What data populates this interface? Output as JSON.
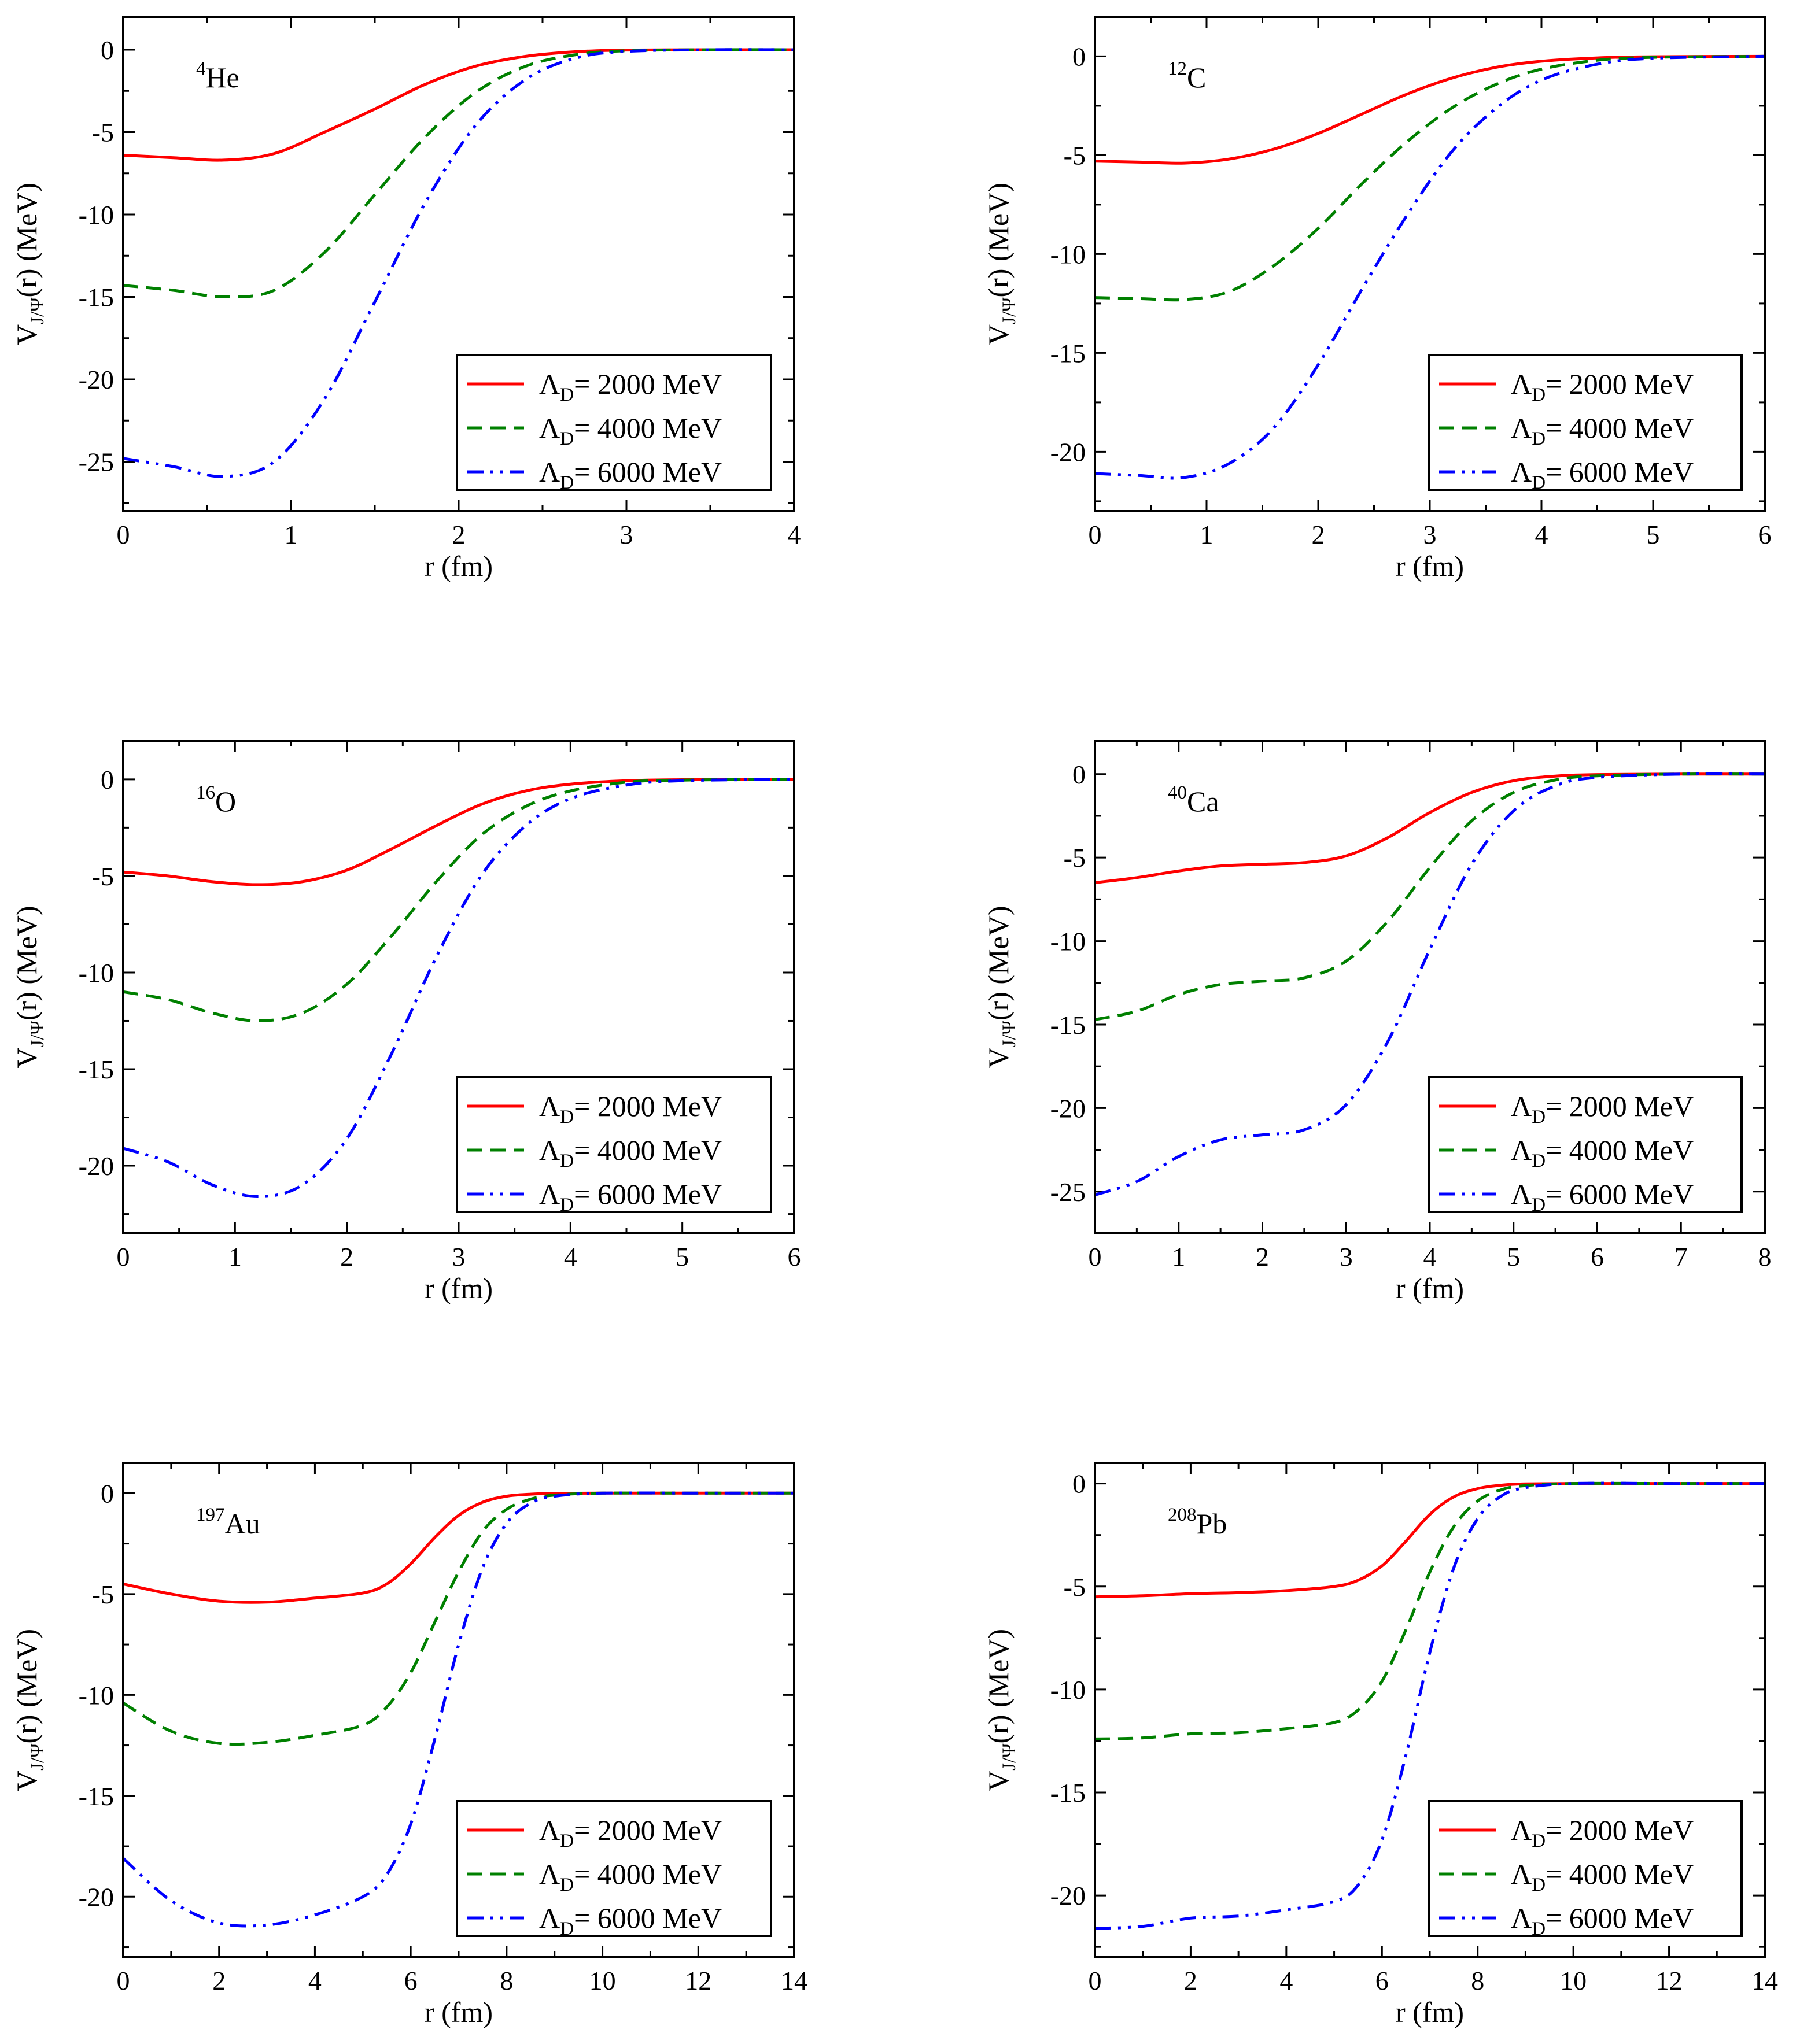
{
  "figure": {
    "x_label": "r  (fm)",
    "y_label": {
      "main": "V",
      "sub": "J/Ψ",
      "rest": "(r)  (MeV)"
    },
    "legend": [
      {
        "prefix": "Λ",
        "sub": "D",
        "text": "= 2000 MeV",
        "color": "#ff0000",
        "dash": ""
      },
      {
        "prefix": "Λ",
        "sub": "D",
        "text": "= 4000 MeV",
        "color": "#008000",
        "dash": "26,14"
      },
      {
        "prefix": "Λ",
        "sub": "D",
        "text": "= 6000 MeV",
        "color": "#0000ff",
        "dash": "28,12,5,12,5,12"
      }
    ]
  },
  "chart_data": [
    {
      "type": "line",
      "nucleus": {
        "mass": "4",
        "symbol": "He"
      },
      "xlabel": "r  (fm)",
      "ylabel": "V_J/Ψ(r)  (MeV)",
      "xlim": [
        0,
        4
      ],
      "ylim": [
        -28,
        2
      ],
      "xticks": [
        0,
        1,
        2,
        3,
        4
      ],
      "yticks": [
        -25,
        -20,
        -15,
        -10,
        -5,
        0
      ],
      "x": [
        0,
        0.3,
        0.6,
        0.9,
        1.2,
        1.5,
        1.8,
        2.1,
        2.4,
        2.7,
        3.0,
        3.5,
        4.0
      ],
      "series": [
        {
          "name": "ΛD = 2000 MeV",
          "values": [
            -6.4,
            -6.55,
            -6.7,
            -6.3,
            -5.0,
            -3.6,
            -2.1,
            -1.0,
            -0.4,
            -0.12,
            -0.02,
            0,
            0
          ]
        },
        {
          "name": "ΛD = 4000 MeV",
          "values": [
            -14.3,
            -14.6,
            -15.0,
            -14.6,
            -12.3,
            -8.8,
            -5.3,
            -2.6,
            -1.0,
            -0.3,
            -0.06,
            0,
            0
          ]
        },
        {
          "name": "ΛD = 6000 MeV",
          "values": [
            -24.8,
            -25.3,
            -25.9,
            -25.0,
            -21.2,
            -15.3,
            -9.3,
            -4.6,
            -1.8,
            -0.5,
            -0.1,
            0,
            0
          ]
        }
      ]
    },
    {
      "type": "line",
      "nucleus": {
        "mass": "12",
        "symbol": "C"
      },
      "xlabel": "r  (fm)",
      "ylabel": "V_J/Ψ(r)  (MeV)",
      "xlim": [
        0,
        6
      ],
      "ylim": [
        -23,
        2
      ],
      "xticks": [
        0,
        1,
        2,
        3,
        4,
        5,
        6
      ],
      "yticks": [
        -20,
        -15,
        -10,
        -5,
        0
      ],
      "x": [
        0,
        0.4,
        0.8,
        1.2,
        1.6,
        2.0,
        2.4,
        2.8,
        3.2,
        3.6,
        4.0,
        4.5,
        5.0,
        6.0
      ],
      "series": [
        {
          "name": "ΛD = 2000 MeV",
          "values": [
            -5.3,
            -5.35,
            -5.4,
            -5.2,
            -4.7,
            -3.9,
            -2.9,
            -1.9,
            -1.1,
            -0.55,
            -0.25,
            -0.08,
            -0.02,
            0
          ]
        },
        {
          "name": "ΛD = 4000 MeV",
          "values": [
            -12.2,
            -12.25,
            -12.3,
            -11.9,
            -10.6,
            -8.7,
            -6.4,
            -4.3,
            -2.6,
            -1.4,
            -0.65,
            -0.2,
            -0.05,
            0
          ]
        },
        {
          "name": "ΛD = 6000 MeV",
          "values": [
            -21.1,
            -21.2,
            -21.3,
            -20.6,
            -18.8,
            -15.6,
            -11.7,
            -8.0,
            -4.8,
            -2.6,
            -1.2,
            -0.4,
            -0.1,
            0
          ]
        }
      ]
    },
    {
      "type": "line",
      "nucleus": {
        "mass": "16",
        "symbol": "O"
      },
      "xlabel": "r  (fm)",
      "ylabel": "V_J/Ψ(r)  (MeV)",
      "xlim": [
        0,
        6
      ],
      "ylim": [
        -23.5,
        2
      ],
      "xticks": [
        0,
        1,
        2,
        3,
        4,
        5,
        6
      ],
      "yticks": [
        -20,
        -15,
        -10,
        -5,
        0
      ],
      "x": [
        0,
        0.4,
        0.8,
        1.2,
        1.6,
        2.0,
        2.4,
        2.8,
        3.2,
        3.6,
        4.0,
        4.5,
        5.0,
        6.0
      ],
      "series": [
        {
          "name": "ΛD = 2000 MeV",
          "values": [
            -4.8,
            -5.0,
            -5.3,
            -5.45,
            -5.3,
            -4.7,
            -3.6,
            -2.4,
            -1.3,
            -0.6,
            -0.25,
            -0.07,
            -0.02,
            0
          ]
        },
        {
          "name": "ΛD = 4000 MeV",
          "values": [
            -11.0,
            -11.4,
            -12.1,
            -12.5,
            -12.1,
            -10.6,
            -8.1,
            -5.3,
            -2.9,
            -1.4,
            -0.6,
            -0.15,
            -0.04,
            0
          ]
        },
        {
          "name": "ΛD = 6000 MeV",
          "values": [
            -19.1,
            -19.8,
            -21.0,
            -21.6,
            -21.0,
            -18.6,
            -14.2,
            -9.2,
            -5.0,
            -2.4,
            -1.0,
            -0.3,
            -0.07,
            0
          ]
        }
      ]
    },
    {
      "type": "line",
      "nucleus": {
        "mass": "40",
        "symbol": "Ca"
      },
      "xlabel": "r  (fm)",
      "ylabel": "V_J/Ψ(r)  (MeV)",
      "xlim": [
        0,
        8
      ],
      "ylim": [
        -27.5,
        2
      ],
      "xticks": [
        0,
        1,
        2,
        3,
        4,
        5,
        6,
        7,
        8
      ],
      "yticks": [
        -25,
        -20,
        -15,
        -10,
        -5,
        0
      ],
      "x": [
        0,
        0.5,
        1.0,
        1.5,
        2.0,
        2.5,
        3.0,
        3.5,
        4.0,
        4.5,
        5.0,
        5.5,
        6.0,
        7.0,
        8.0
      ],
      "series": [
        {
          "name": "ΛD = 2000 MeV",
          "values": [
            -6.5,
            -6.2,
            -5.8,
            -5.5,
            -5.4,
            -5.3,
            -4.9,
            -3.8,
            -2.3,
            -1.1,
            -0.4,
            -0.12,
            -0.03,
            0,
            0
          ]
        },
        {
          "name": "ΛD = 4000 MeV",
          "values": [
            -14.7,
            -14.2,
            -13.2,
            -12.6,
            -12.4,
            -12.2,
            -11.2,
            -8.8,
            -5.6,
            -2.8,
            -1.1,
            -0.35,
            -0.1,
            0,
            0
          ]
        },
        {
          "name": "ΛD = 6000 MeV",
          "values": [
            -25.2,
            -24.4,
            -22.9,
            -21.9,
            -21.6,
            -21.3,
            -19.8,
            -16.0,
            -10.5,
            -5.4,
            -2.2,
            -0.7,
            -0.2,
            0,
            0
          ]
        }
      ]
    },
    {
      "type": "line",
      "nucleus": {
        "mass": "197",
        "symbol": "Au"
      },
      "xlabel": "r (fm)",
      "ylabel": "V_J/Ψ(r)  (MeV)",
      "xlim": [
        0,
        14
      ],
      "ylim": [
        -23,
        1.5
      ],
      "xticks": [
        0,
        2,
        4,
        6,
        8,
        10,
        12,
        14
      ],
      "yticks": [
        -20,
        -15,
        -10,
        -5,
        0
      ],
      "x": [
        0,
        1,
        2,
        3,
        4,
        5,
        5.5,
        6.0,
        6.5,
        7.0,
        7.5,
        8.0,
        8.5,
        9.0,
        10,
        12,
        14
      ],
      "series": [
        {
          "name": "ΛD = 2000 MeV",
          "values": [
            -4.5,
            -5.0,
            -5.35,
            -5.4,
            -5.2,
            -4.95,
            -4.5,
            -3.5,
            -2.2,
            -1.1,
            -0.45,
            -0.15,
            -0.05,
            -0.01,
            0,
            0,
            0
          ]
        },
        {
          "name": "ΛD = 4000 MeV",
          "values": [
            -10.4,
            -11.8,
            -12.4,
            -12.35,
            -12.0,
            -11.5,
            -10.6,
            -8.9,
            -6.4,
            -3.9,
            -1.9,
            -0.8,
            -0.3,
            -0.1,
            0,
            0,
            0
          ]
        },
        {
          "name": "ΛD = 6000 MeV",
          "values": [
            -18.1,
            -20.2,
            -21.3,
            -21.4,
            -20.9,
            -20.0,
            -18.9,
            -16.4,
            -12.2,
            -7.5,
            -3.7,
            -1.5,
            -0.5,
            -0.15,
            0,
            0,
            0
          ]
        }
      ]
    },
    {
      "type": "line",
      "nucleus": {
        "mass": "208",
        "symbol": "Pb"
      },
      "xlabel": "r (fm)",
      "ylabel": "V_J/Ψ(r)  (MeV)",
      "xlim": [
        0,
        14
      ],
      "ylim": [
        -23,
        1
      ],
      "xticks": [
        0,
        2,
        4,
        6,
        8,
        10,
        12,
        14
      ],
      "yticks": [
        -20,
        -15,
        -10,
        -5,
        0
      ],
      "x": [
        0,
        1,
        2,
        3,
        4,
        5,
        5.5,
        6.0,
        6.5,
        7.0,
        7.5,
        8.0,
        8.5,
        9.0,
        10,
        12,
        14
      ],
      "series": [
        {
          "name": "ΛD = 2000 MeV",
          "values": [
            -5.5,
            -5.45,
            -5.35,
            -5.3,
            -5.2,
            -5.0,
            -4.7,
            -4.0,
            -2.8,
            -1.5,
            -0.65,
            -0.25,
            -0.08,
            -0.02,
            0,
            0,
            0
          ]
        },
        {
          "name": "ΛD = 4000 MeV",
          "values": [
            -12.4,
            -12.35,
            -12.15,
            -12.1,
            -11.9,
            -11.6,
            -11.0,
            -9.6,
            -7.1,
            -4.3,
            -2.1,
            -0.85,
            -0.3,
            -0.1,
            0,
            0,
            0
          ]
        },
        {
          "name": "ΛD = 6000 MeV",
          "values": [
            -21.6,
            -21.5,
            -21.1,
            -21.0,
            -20.7,
            -20.3,
            -19.5,
            -17.3,
            -13.2,
            -8.2,
            -4.1,
            -1.7,
            -0.6,
            -0.2,
            0,
            0,
            0
          ]
        }
      ]
    }
  ]
}
